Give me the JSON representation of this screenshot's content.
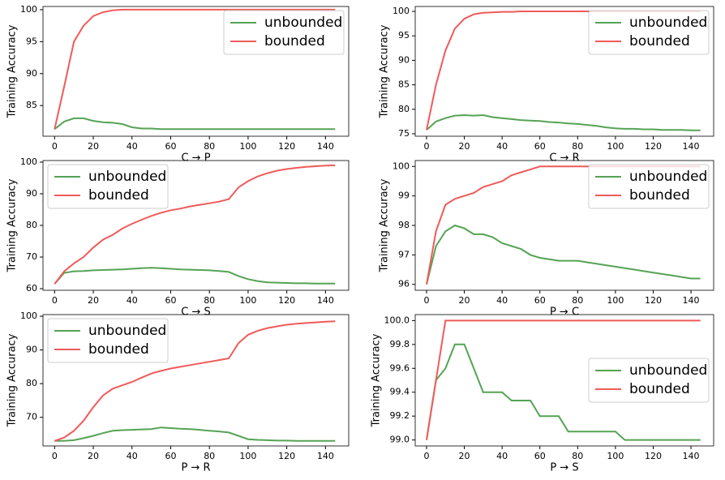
{
  "chart_data": [
    {
      "type": "line",
      "xlabel": "C → P",
      "ylabel": "Training Accuracy",
      "legend": "upper right",
      "x": [
        0,
        5,
        10,
        15,
        20,
        25,
        30,
        35,
        40,
        45,
        50,
        55,
        60,
        65,
        70,
        75,
        80,
        85,
        90,
        95,
        100,
        105,
        110,
        115,
        120,
        125,
        130,
        135,
        140,
        145
      ],
      "xlim": [
        -6,
        152
      ],
      "xticks": [
        0,
        20,
        40,
        60,
        80,
        100,
        120,
        140
      ],
      "ylim": [
        80.2,
        100.5
      ],
      "yticks": [
        85,
        90,
        95,
        100
      ],
      "series": [
        {
          "name": "unbounded",
          "color": "#55a355",
          "values": [
            81.3,
            82.5,
            83,
            83,
            82.6,
            82.4,
            82.3,
            82.1,
            81.6,
            81.4,
            81.4,
            81.3,
            81.3,
            81.3,
            81.3,
            81.3,
            81.3,
            81.3,
            81.3,
            81.3,
            81.3,
            81.3,
            81.3,
            81.3,
            81.3,
            81.3,
            81.3,
            81.3,
            81.3,
            81.3
          ]
        },
        {
          "name": "bounded",
          "color": "#f05a5a",
          "values": [
            81.3,
            88,
            95,
            97.5,
            99,
            99.6,
            99.9,
            100,
            100,
            100,
            100,
            100,
            100,
            100,
            100,
            100,
            100,
            100,
            100,
            100,
            100,
            100,
            100,
            100,
            100,
            100,
            100,
            100,
            100,
            100
          ]
        }
      ]
    },
    {
      "type": "line",
      "xlabel": "C → R",
      "ylabel": "Training Accuracy",
      "legend": "upper right",
      "x": [
        0,
        5,
        10,
        15,
        20,
        25,
        30,
        35,
        40,
        45,
        50,
        55,
        60,
        65,
        70,
        75,
        80,
        85,
        90,
        95,
        100,
        105,
        110,
        115,
        120,
        125,
        130,
        135,
        140,
        145
      ],
      "xlim": [
        -6,
        152
      ],
      "xticks": [
        0,
        20,
        40,
        60,
        80,
        100,
        120,
        140
      ],
      "ylim": [
        74.5,
        101
      ],
      "yticks": [
        75,
        80,
        85,
        90,
        95,
        100
      ],
      "series": [
        {
          "name": "unbounded",
          "color": "#55a355",
          "values": [
            75.8,
            77.5,
            78.2,
            78.7,
            78.8,
            78.7,
            78.8,
            78.4,
            78.2,
            78,
            77.8,
            77.7,
            77.6,
            77.4,
            77.3,
            77.1,
            77,
            76.8,
            76.6,
            76.3,
            76.1,
            76,
            76,
            75.9,
            75.9,
            75.8,
            75.8,
            75.8,
            75.7,
            75.7
          ]
        },
        {
          "name": "bounded",
          "color": "#f05a5a",
          "values": [
            75.8,
            85,
            92,
            96.5,
            98.5,
            99.4,
            99.7,
            99.8,
            99.9,
            99.9,
            100,
            100,
            100,
            100,
            100,
            100,
            100,
            100,
            100,
            100,
            100,
            100,
            100,
            100,
            100,
            100,
            100,
            100,
            100,
            100
          ]
        }
      ]
    },
    {
      "type": "line",
      "xlabel": "C → S",
      "ylabel": "Training Accuracy",
      "legend": "upper left",
      "x": [
        0,
        5,
        10,
        15,
        20,
        25,
        30,
        35,
        40,
        45,
        50,
        55,
        60,
        65,
        70,
        75,
        80,
        85,
        90,
        95,
        100,
        105,
        110,
        115,
        120,
        125,
        130,
        135,
        140,
        145
      ],
      "xlim": [
        -6,
        152
      ],
      "xticks": [
        0,
        20,
        40,
        60,
        80,
        100,
        120,
        140
      ],
      "ylim": [
        59.5,
        100.5
      ],
      "yticks": [
        60,
        70,
        80,
        90,
        100
      ],
      "series": [
        {
          "name": "unbounded",
          "color": "#55a355",
          "values": [
            61.5,
            65,
            65.5,
            65.6,
            65.8,
            65.9,
            66,
            66.1,
            66.3,
            66.5,
            66.6,
            66.5,
            66.3,
            66.1,
            66,
            65.9,
            65.8,
            65.6,
            65.3,
            64,
            63,
            62.4,
            62,
            61.9,
            61.8,
            61.7,
            61.7,
            61.6,
            61.6,
            61.6
          ]
        },
        {
          "name": "bounded",
          "color": "#f05a5a",
          "values": [
            61.5,
            65.5,
            68,
            70,
            73,
            75.5,
            77,
            79,
            80.5,
            81.8,
            83,
            84,
            84.8,
            85.3,
            86,
            86.5,
            87,
            87.5,
            88.3,
            92,
            94,
            95.5,
            96.5,
            97.3,
            97.8,
            98.2,
            98.5,
            98.7,
            98.9,
            99
          ]
        }
      ]
    },
    {
      "type": "line",
      "xlabel": "P → C",
      "ylabel": "Training Accuracy",
      "legend": "upper right",
      "x": [
        0,
        5,
        10,
        15,
        20,
        25,
        30,
        35,
        40,
        45,
        50,
        55,
        60,
        65,
        70,
        75,
        80,
        85,
        90,
        95,
        100,
        105,
        110,
        115,
        120,
        125,
        130,
        135,
        140,
        145
      ],
      "xlim": [
        -6,
        152
      ],
      "xticks": [
        0,
        20,
        40,
        60,
        80,
        100,
        120,
        140
      ],
      "ylim": [
        95.8,
        100.2
      ],
      "yticks": [
        96,
        97,
        98,
        99,
        100
      ],
      "series": [
        {
          "name": "unbounded",
          "color": "#55a355",
          "values": [
            96,
            97.3,
            97.8,
            98,
            97.9,
            97.7,
            97.7,
            97.6,
            97.4,
            97.3,
            97.2,
            97,
            96.9,
            96.85,
            96.8,
            96.8,
            96.8,
            96.75,
            96.7,
            96.65,
            96.6,
            96.55,
            96.5,
            96.45,
            96.4,
            96.35,
            96.3,
            96.25,
            96.2,
            96.2
          ]
        },
        {
          "name": "bounded",
          "color": "#f05a5a",
          "values": [
            96,
            97.8,
            98.7,
            98.9,
            99,
            99.1,
            99.3,
            99.4,
            99.5,
            99.7,
            99.8,
            99.9,
            100,
            100,
            100,
            100,
            100,
            100,
            100,
            100,
            100,
            100,
            100,
            100,
            100,
            100,
            100,
            100,
            100,
            100
          ]
        }
      ]
    },
    {
      "type": "line",
      "xlabel": "P → R",
      "ylabel": "Training Accuracy",
      "legend": "upper left",
      "x": [
        0,
        5,
        10,
        15,
        20,
        25,
        30,
        35,
        40,
        45,
        50,
        55,
        60,
        65,
        70,
        75,
        80,
        85,
        90,
        95,
        100,
        105,
        110,
        115,
        120,
        125,
        130,
        135,
        140,
        145
      ],
      "xlim": [
        -6,
        152
      ],
      "xticks": [
        0,
        20,
        40,
        60,
        80,
        100,
        120,
        140
      ],
      "ylim": [
        61.5,
        100.5
      ],
      "yticks": [
        70,
        80,
        90,
        100
      ],
      "series": [
        {
          "name": "unbounded",
          "color": "#55a355",
          "values": [
            63,
            63,
            63.2,
            63.8,
            64.5,
            65.3,
            66,
            66.2,
            66.3,
            66.4,
            66.5,
            67,
            66.8,
            66.6,
            66.5,
            66.3,
            66,
            65.8,
            65.5,
            64.5,
            63.5,
            63.3,
            63.2,
            63.1,
            63.1,
            63,
            63,
            63,
            63,
            63
          ]
        },
        {
          "name": "bounded",
          "color": "#f05a5a",
          "values": [
            63,
            64,
            66,
            69,
            73,
            76.5,
            78.5,
            79.5,
            80.5,
            81.8,
            83,
            83.8,
            84.5,
            85,
            85.5,
            86,
            86.5,
            87,
            87.5,
            92,
            94.5,
            95.7,
            96.5,
            97,
            97.5,
            97.8,
            98,
            98.2,
            98.4,
            98.5
          ]
        }
      ]
    },
    {
      "type": "line",
      "xlabel": "P → S",
      "ylabel": "Training Accuracy",
      "legend": "center right",
      "x": [
        0,
        5,
        10,
        15,
        20,
        25,
        30,
        35,
        40,
        45,
        50,
        55,
        60,
        65,
        70,
        75,
        80,
        85,
        90,
        95,
        100,
        105,
        110,
        115,
        120,
        125,
        130,
        135,
        140,
        145
      ],
      "xlim": [
        -6,
        152
      ],
      "xticks": [
        0,
        20,
        40,
        60,
        80,
        100,
        120,
        140
      ],
      "ylim": [
        98.95,
        100.05
      ],
      "yticks": [
        {
          "value": 99,
          "label": "99.0"
        },
        99.2,
        99.4,
        99.6,
        99.8,
        {
          "value": 100,
          "label": "100.0"
        }
      ],
      "series": [
        {
          "name": "unbounded",
          "color": "#55a355",
          "values": [
            99,
            99.5,
            99.6,
            99.8,
            99.8,
            99.6,
            99.4,
            99.4,
            99.4,
            99.33,
            99.33,
            99.33,
            99.2,
            99.2,
            99.2,
            99.07,
            99.07,
            99.07,
            99.07,
            99.07,
            99.07,
            99,
            99,
            99,
            99,
            99,
            99,
            99,
            99,
            99
          ]
        },
        {
          "name": "bounded",
          "color": "#f05a5a",
          "values": [
            99,
            99.5,
            100,
            100,
            100,
            100,
            100,
            100,
            100,
            100,
            100,
            100,
            100,
            100,
            100,
            100,
            100,
            100,
            100,
            100,
            100,
            100,
            100,
            100,
            100,
            100,
            100,
            100,
            100,
            100
          ]
        }
      ]
    }
  ]
}
